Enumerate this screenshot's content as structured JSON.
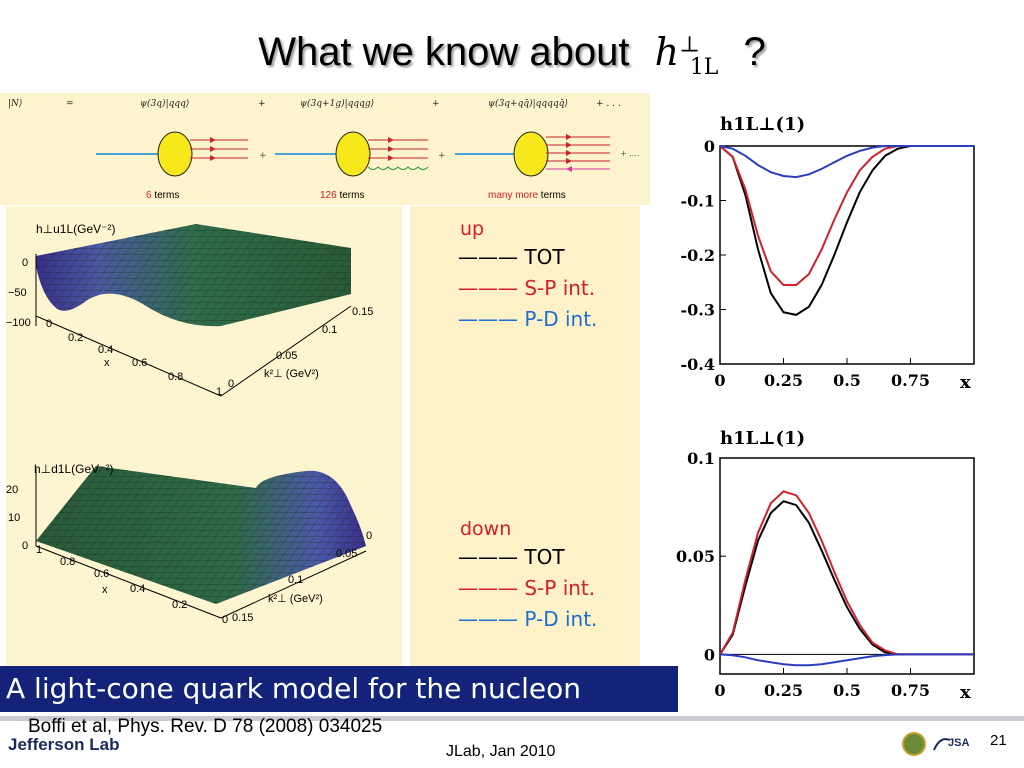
{
  "slide": {
    "title_prefix": "What we know about",
    "title_symbol_base": "h",
    "title_symbol_sup": "⊥",
    "title_symbol_sub": "1L",
    "title_suffix": "?"
  },
  "fock": {
    "lhs": "|N⟩",
    "eq": "=",
    "term1": "ψ(3q)|qqq⟩",
    "term2": "ψ(3q+1g)|qqqg⟩",
    "term3": "ψ(3q+qq̄)|qqqqq̄⟩",
    "plus": "+",
    "tail": "+ . . .",
    "dots_tail": "+ ....",
    "label1_num": "6",
    "label1_text": "terms",
    "label2_num": "126",
    "label2_text": "terms",
    "label3_num": "many more",
    "label3_text": "terms"
  },
  "plot_up": {
    "zlabel": "h⊥u1L(GeV⁻²)",
    "zticks": [
      "0",
      "−50",
      "−100"
    ],
    "xticks": [
      "0",
      "0.2",
      "0.4",
      "0.6",
      "0.8",
      "1"
    ],
    "xlabel": "x",
    "kticks": [
      "0",
      "0.05",
      "0.1",
      "0.15"
    ],
    "klabel": "k²⊥ (GeV²)"
  },
  "plot_down": {
    "zlabel": "h⊥d1L(GeV⁻²)",
    "zticks": [
      "20",
      "10",
      "0"
    ],
    "xticks": [
      "1",
      "0.8",
      "0.6",
      "0.4",
      "0.2",
      "0"
    ],
    "xlabel": "x",
    "kticks": [
      "0",
      "0.05",
      "0.1",
      "0.15"
    ],
    "klabel": "k²⊥ (GeV²)"
  },
  "legend": {
    "up_title": "up",
    "down_title": "down",
    "dash": "———",
    "tot": "TOT",
    "sp": "S-P int.",
    "pd": "P-D int."
  },
  "banner": "A light-cone quark model for the nucleon",
  "citation": "Boffi et al, Phys. Rev. D 78 (2008) 034025",
  "footer": {
    "jlab": "Jefferson Lab",
    "center": "JLab, Jan 2010",
    "jsa": "JSA",
    "page": "21"
  },
  "colors": {
    "tot": "#000000",
    "sp": "#d1202a",
    "pd": "#2a3fc0",
    "legend_red": "#d1202a",
    "legend_blue": "#1a6fd0",
    "banner_bg": "#14237a"
  },
  "chart_data": [
    {
      "type": "line",
      "title": "h1L⊥(1)",
      "xlabel": "x",
      "xticks": [
        "0",
        "0.25",
        "0.5",
        "0.75"
      ],
      "yticks": [
        "0",
        "-0.1",
        "-0.2",
        "-0.3",
        "-0.4"
      ],
      "xlim": [
        0,
        1
      ],
      "ylim": [
        -0.4,
        0.0
      ],
      "series": [
        {
          "name": "TOT",
          "color": "#000000",
          "x": [
            0,
            0.05,
            0.1,
            0.15,
            0.2,
            0.25,
            0.3,
            0.35,
            0.4,
            0.45,
            0.5,
            0.55,
            0.6,
            0.65,
            0.7,
            0.75,
            0.8,
            1.0
          ],
          "y": [
            0,
            -0.02,
            -0.09,
            -0.19,
            -0.27,
            -0.305,
            -0.31,
            -0.295,
            -0.255,
            -0.2,
            -0.14,
            -0.085,
            -0.045,
            -0.018,
            -0.005,
            0,
            0,
            0
          ]
        },
        {
          "name": "S-P int.",
          "color": "#d1202a",
          "x": [
            0,
            0.05,
            0.1,
            0.15,
            0.2,
            0.25,
            0.3,
            0.35,
            0.4,
            0.45,
            0.5,
            0.55,
            0.6,
            0.65,
            0.7,
            0.75,
            0.8,
            1.0
          ],
          "y": [
            0,
            -0.02,
            -0.08,
            -0.165,
            -0.23,
            -0.255,
            -0.255,
            -0.235,
            -0.19,
            -0.135,
            -0.085,
            -0.045,
            -0.02,
            -0.005,
            0,
            0,
            0,
            0
          ]
        },
        {
          "name": "P-D int.",
          "color": "#2a3fc0",
          "x": [
            0,
            0.05,
            0.1,
            0.15,
            0.2,
            0.25,
            0.3,
            0.35,
            0.4,
            0.45,
            0.5,
            0.55,
            0.6,
            0.65,
            0.7,
            0.75,
            0.8,
            1.0
          ],
          "y": [
            0,
            -0.005,
            -0.018,
            -0.035,
            -0.048,
            -0.055,
            -0.057,
            -0.052,
            -0.042,
            -0.03,
            -0.018,
            -0.009,
            -0.003,
            0,
            0,
            0,
            0,
            0
          ]
        }
      ]
    },
    {
      "type": "line",
      "title": "h1L⊥(1)",
      "xlabel": "x",
      "xticks": [
        "0",
        "0.25",
        "0.5",
        "0.75"
      ],
      "yticks": [
        "0.1",
        "0.05",
        "0"
      ],
      "xlim": [
        0,
        1
      ],
      "ylim": [
        -0.01,
        0.1
      ],
      "series": [
        {
          "name": "TOT",
          "color": "#000000",
          "x": [
            0,
            0.05,
            0.1,
            0.15,
            0.2,
            0.25,
            0.3,
            0.35,
            0.4,
            0.45,
            0.5,
            0.55,
            0.6,
            0.65,
            0.7,
            0.75,
            0.8,
            1.0
          ],
          "y": [
            0,
            0.01,
            0.035,
            0.058,
            0.072,
            0.078,
            0.076,
            0.067,
            0.053,
            0.038,
            0.024,
            0.013,
            0.005,
            0.001,
            0,
            0,
            0,
            0
          ]
        },
        {
          "name": "S-P int.",
          "color": "#d1202a",
          "x": [
            0,
            0.05,
            0.1,
            0.15,
            0.2,
            0.25,
            0.3,
            0.35,
            0.4,
            0.45,
            0.5,
            0.55,
            0.6,
            0.65,
            0.7,
            0.75,
            0.8,
            1.0
          ],
          "y": [
            0,
            0.011,
            0.038,
            0.062,
            0.077,
            0.083,
            0.081,
            0.072,
            0.058,
            0.042,
            0.027,
            0.015,
            0.006,
            0.002,
            0,
            0,
            0,
            0
          ]
        },
        {
          "name": "P-D int.",
          "color": "#2a3fc0",
          "x": [
            0,
            0.05,
            0.1,
            0.15,
            0.2,
            0.25,
            0.3,
            0.35,
            0.4,
            0.45,
            0.5,
            0.55,
            0.6,
            0.65,
            0.7,
            0.75,
            0.8,
            1.0
          ],
          "y": [
            0,
            -0.0005,
            -0.0015,
            -0.003,
            -0.004,
            -0.005,
            -0.0055,
            -0.0055,
            -0.005,
            -0.004,
            -0.003,
            -0.002,
            -0.001,
            -0.0004,
            0,
            0,
            0,
            0
          ]
        }
      ]
    }
  ]
}
